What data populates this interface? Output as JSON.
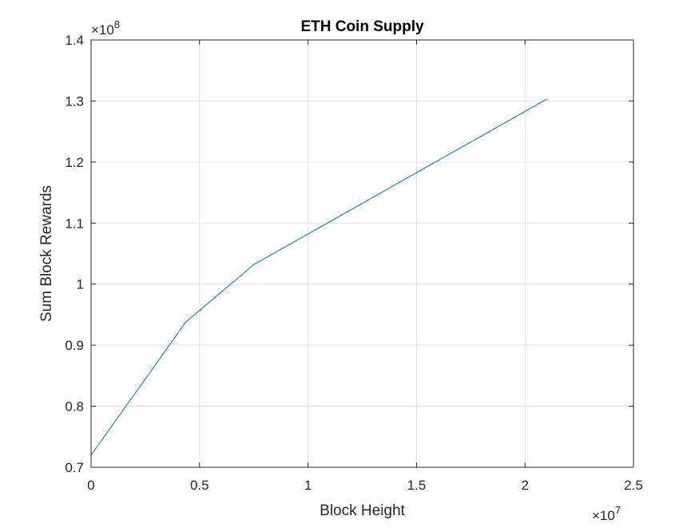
{
  "chart_data": {
    "type": "line",
    "title": "ETH Coin Supply",
    "xlabel": "Block Height",
    "ylabel": "Sum Block Rewards",
    "x_multiplier": {
      "prefix": "×10",
      "exponent": "7"
    },
    "y_multiplier": {
      "prefix": "×10",
      "exponent": "8"
    },
    "xlim": [
      0,
      2.5
    ],
    "ylim": [
      0.7,
      1.4
    ],
    "xticks": [
      0,
      0.5,
      1,
      1.5,
      2,
      2.5
    ],
    "xtick_labels": [
      "0",
      "0.5",
      "1",
      "1.5",
      "2",
      "2.5"
    ],
    "yticks": [
      0.7,
      0.8,
      0.9,
      1.0,
      1.1,
      1.2,
      1.3,
      1.4
    ],
    "ytick_labels": [
      "0.7",
      "0.8",
      "0.9",
      "1",
      "1.1",
      "1.2",
      "1.3",
      "1.4"
    ],
    "grid": true,
    "series": [
      {
        "color": "#0072BD",
        "x": [
          0,
          0.437,
          0.75,
          2.1
        ],
        "y": [
          0.72,
          0.938,
          1.032,
          1.303
        ]
      }
    ]
  }
}
